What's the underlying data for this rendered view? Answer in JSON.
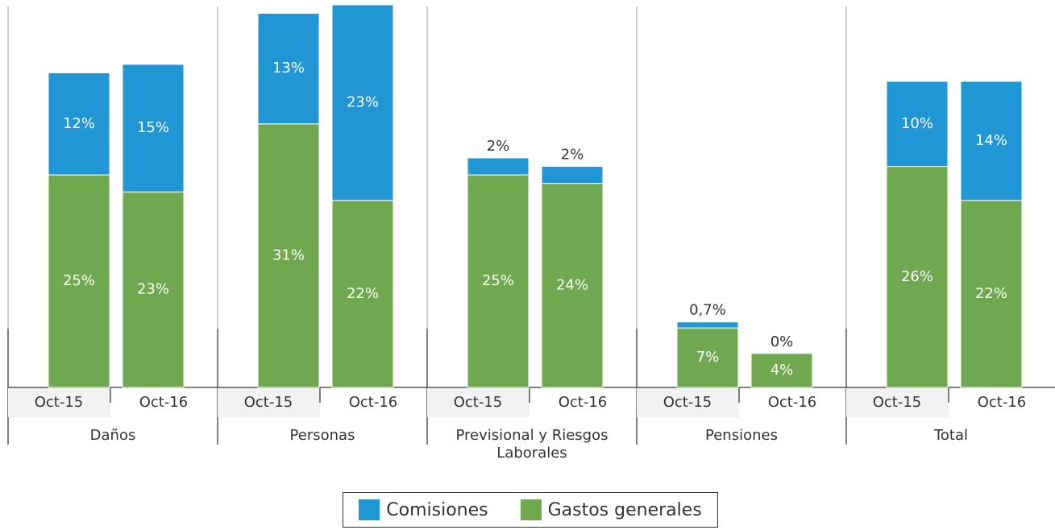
{
  "chart_data": {
    "type": "stacked_bar",
    "groups": [
      "Daños",
      "Personas",
      "Previsional y Riesgos Laborales",
      "Pensiones",
      "Total"
    ],
    "categories": [
      "Oct-15",
      "Oct-16",
      "Oct-15",
      "Oct-16",
      "Oct-15",
      "Oct-16",
      "Oct-15",
      "Oct-16",
      "Oct-15",
      "Oct-16"
    ],
    "series": [
      {
        "name": "Gastos generales",
        "color": "#70a84f",
        "values": [
          25,
          23,
          31,
          22,
          25,
          24,
          7,
          4,
          26,
          22
        ],
        "value_labels": [
          "25%",
          "23%",
          "31%",
          "22%",
          "25%",
          "24%",
          "7%",
          "4%",
          "26%",
          "22%"
        ]
      },
      {
        "name": "Comisiones",
        "color": "#2196d4",
        "values": [
          12,
          15,
          13,
          23,
          2,
          2,
          0.7,
          0,
          10,
          14
        ],
        "value_labels": [
          "12%",
          "15%",
          "13%",
          "23%",
          "2%",
          "2%",
          "0,7%",
          "0%",
          "10%",
          "14%"
        ]
      }
    ]
  }
}
